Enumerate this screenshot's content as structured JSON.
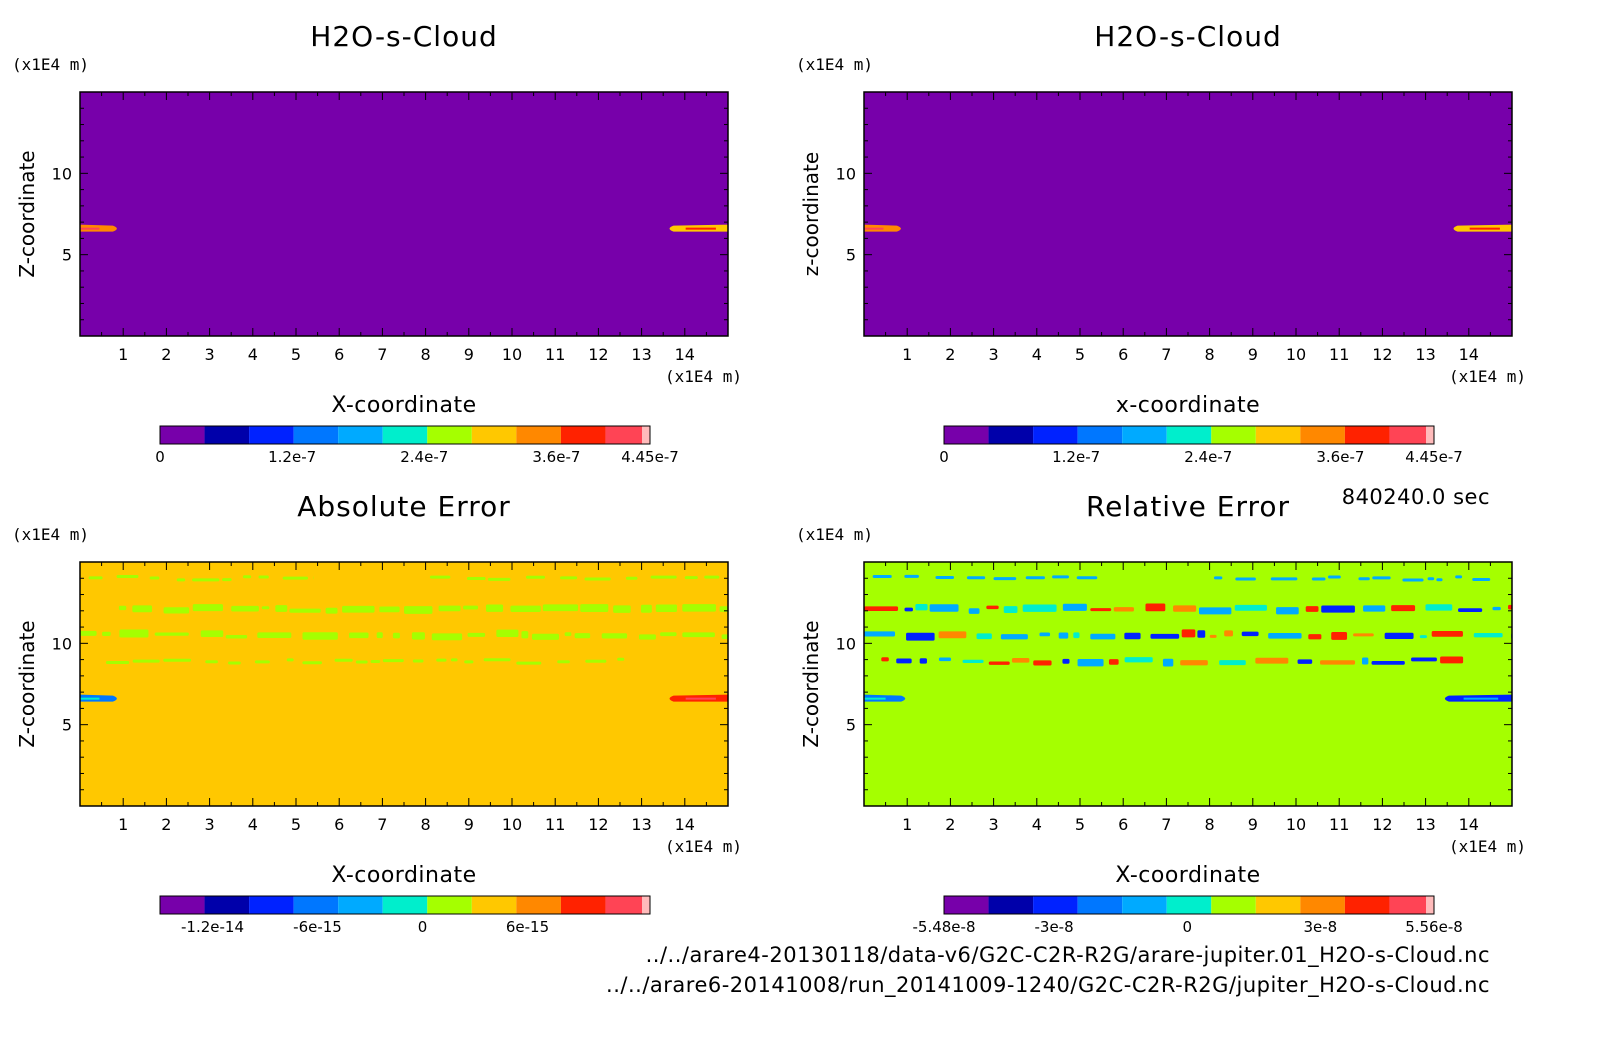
{
  "timestamp": "840240.0 sec",
  "files": [
    "../../arare4-20130118/data-v6/G2C-C2R-R2G/arare-jupiter.01_H2O-s-Cloud.nc",
    "../../arare6-20141008/run_20141009-1240/G2C-C2R-R2G/jupiter_H2O-s-Cloud.nc"
  ],
  "colors": {
    "palette": [
      "#7700aa",
      "#0000aa",
      "#0022ff",
      "#0077ff",
      "#00aaff",
      "#00eecc",
      "#a5ff00",
      "#ffc800",
      "#ff8800",
      "#ff2200",
      "#ff4455",
      "#ffbbbb"
    ],
    "text": "#000000"
  },
  "chart_data": [
    {
      "type": "heatmap",
      "title": "H2O-s-Cloud",
      "xlabel": "X-coordinate",
      "ylabel": "Z-coordinate",
      "x_unit": "(x1E4 m)",
      "y_unit": "(x1E4 m)",
      "xlim": [
        0,
        15
      ],
      "ylim": [
        0,
        15
      ],
      "xticks": [
        1,
        2,
        3,
        4,
        5,
        6,
        7,
        8,
        9,
        10,
        11,
        12,
        13,
        14
      ],
      "yticks": [
        5,
        10
      ],
      "background_level": 0,
      "features": [
        {
          "x": [
            0,
            0.9
          ],
          "z": 6.6,
          "level": 8
        },
        {
          "x": [
            13.6,
            15
          ],
          "z": 6.6,
          "level": 7
        }
      ],
      "colorbar": {
        "min": 0,
        "max": 4.45e-07,
        "levels": 11,
        "ticks": [
          {
            "v": 0,
            "label": "0"
          },
          {
            "v": 1.2e-07,
            "label": "1.2e-7"
          },
          {
            "v": 2.4e-07,
            "label": "2.4e-7"
          },
          {
            "v": 3.6e-07,
            "label": "3.6e-7"
          },
          {
            "v": 4.45e-07,
            "label": "4.45e-7"
          }
        ]
      }
    },
    {
      "type": "heatmap",
      "title": "H2O-s-Cloud",
      "xlabel": "x-coordinate",
      "ylabel": "z-coordinate",
      "x_unit": "(x1E4 m)",
      "y_unit": "(x1E4 m)",
      "xlim": [
        0,
        15
      ],
      "ylim": [
        0,
        15
      ],
      "xticks": [
        1,
        2,
        3,
        4,
        5,
        6,
        7,
        8,
        9,
        10,
        11,
        12,
        13,
        14
      ],
      "yticks": [
        5,
        10
      ],
      "background_level": 0,
      "features": [
        {
          "x": [
            0,
            0.9
          ],
          "z": 6.6,
          "level": 8
        },
        {
          "x": [
            13.6,
            15
          ],
          "z": 6.6,
          "level": 7
        }
      ],
      "colorbar": {
        "min": 0,
        "max": 4.45e-07,
        "levels": 11,
        "ticks": [
          {
            "v": 0,
            "label": "0"
          },
          {
            "v": 1.2e-07,
            "label": "1.2e-7"
          },
          {
            "v": 2.4e-07,
            "label": "2.4e-7"
          },
          {
            "v": 3.6e-07,
            "label": "3.6e-7"
          },
          {
            "v": 4.45e-07,
            "label": "4.45e-7"
          }
        ]
      }
    },
    {
      "type": "heatmap",
      "title": "Absolute Error",
      "xlabel": "X-coordinate",
      "ylabel": "Z-coordinate",
      "x_unit": "(x1E4 m)",
      "y_unit": "(x1E4 m)",
      "xlim": [
        0,
        15
      ],
      "ylim": [
        0,
        15
      ],
      "xticks": [
        1,
        2,
        3,
        4,
        5,
        6,
        7,
        8,
        9,
        10,
        11,
        12,
        13,
        14
      ],
      "yticks": [
        5,
        10
      ],
      "background_level": 7,
      "features": [
        {
          "x": [
            0.2,
            5.4
          ],
          "z": 14.0,
          "level": 6,
          "pattern": "dashed"
        },
        {
          "x": [
            8.1,
            14.8
          ],
          "z": 14.0,
          "level": 6,
          "pattern": "dashed"
        },
        {
          "x": [
            0.9,
            15
          ],
          "z": 12.1,
          "level": 6,
          "pattern": "blobs"
        },
        {
          "x": [
            0,
            15
          ],
          "z": 10.5,
          "level": 6,
          "pattern": "blobs"
        },
        {
          "x": [
            0.6,
            12.6
          ],
          "z": 8.9,
          "level": 6,
          "pattern": "dashed"
        },
        {
          "x": [
            0,
            0.9
          ],
          "z": 6.6,
          "level": 3
        },
        {
          "x": [
            13.6,
            15
          ],
          "z": 6.6,
          "level": 9
        }
      ],
      "colorbar": {
        "min": -1.5e-14,
        "max": 1.3e-14,
        "levels": 11,
        "ticks": [
          {
            "v": -1.2e-14,
            "label": "-1.2e-14"
          },
          {
            "v": -6e-15,
            "label": "-6e-15"
          },
          {
            "v": 0,
            "label": "0"
          },
          {
            "v": 6e-15,
            "label": "6e-15"
          }
        ]
      }
    },
    {
      "type": "heatmap",
      "title": "Relative Error",
      "xlabel": "X-coordinate",
      "ylabel": "Z-coordinate",
      "x_unit": "(x1E4 m)",
      "y_unit": "(x1E4 m)",
      "xlim": [
        0,
        15
      ],
      "ylim": [
        0,
        15
      ],
      "xticks": [
        1,
        2,
        3,
        4,
        5,
        6,
        7,
        8,
        9,
        10,
        11,
        12,
        13,
        14
      ],
      "yticks": [
        5,
        10
      ],
      "background_level": 6,
      "features": [
        {
          "x": [
            0.2,
            5.4
          ],
          "z": 14.0,
          "level": 4,
          "pattern": "dashed"
        },
        {
          "x": [
            8.1,
            14.8
          ],
          "z": 14.0,
          "level": 4,
          "pattern": "dashed"
        },
        {
          "x": [
            0,
            15
          ],
          "z": 12.1,
          "level": 9,
          "pattern": "mixed"
        },
        {
          "x": [
            0,
            15
          ],
          "z": 10.5,
          "level": 3,
          "pattern": "mixed"
        },
        {
          "x": [
            0.4,
            14
          ],
          "z": 8.9,
          "level": 3,
          "pattern": "mixed"
        },
        {
          "x": [
            0,
            1.0
          ],
          "z": 6.6,
          "level": 3
        },
        {
          "x": [
            13.4,
            15
          ],
          "z": 6.6,
          "level": 2
        }
      ],
      "colorbar": {
        "min": -5.48e-08,
        "max": 5.56e-08,
        "levels": 11,
        "ticks": [
          {
            "v": -5.48e-08,
            "label": "-5.48e-8"
          },
          {
            "v": -3e-08,
            "label": "-3e-8"
          },
          {
            "v": 0,
            "label": "0"
          },
          {
            "v": 3e-08,
            "label": "3e-8"
          },
          {
            "v": 5.56e-08,
            "label": "5.56e-8"
          }
        ]
      }
    }
  ]
}
